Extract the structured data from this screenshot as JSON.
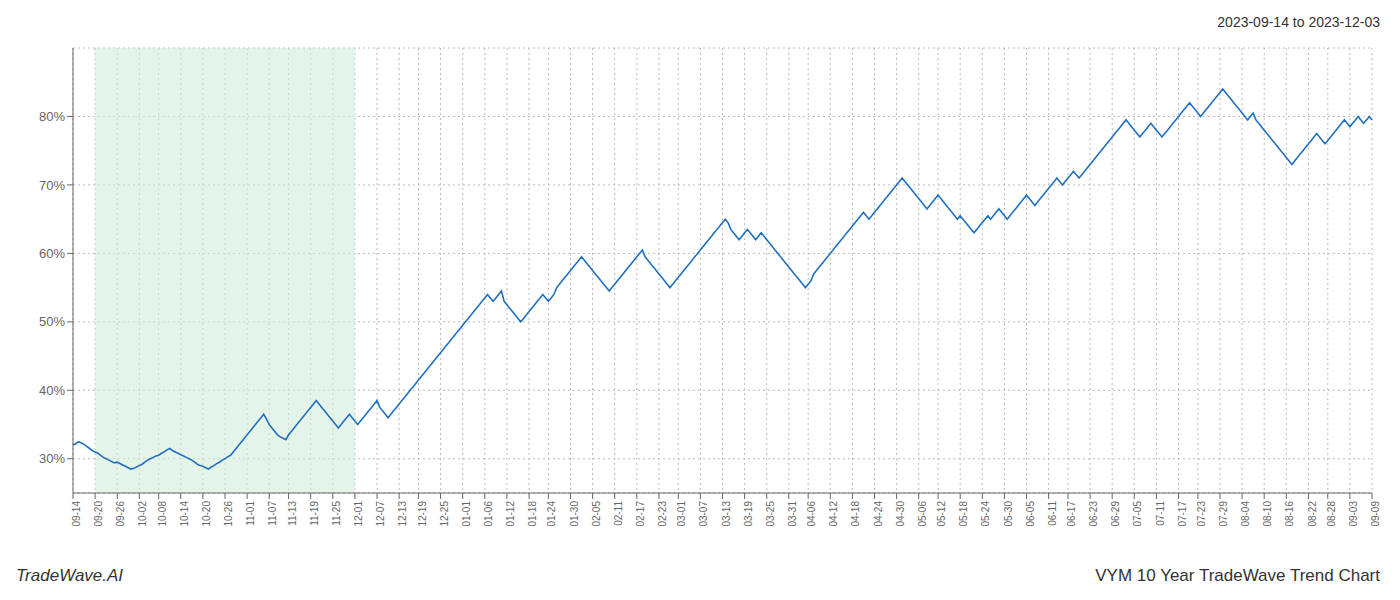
{
  "chart_data": {
    "type": "line",
    "title": "2023-09-14 to 2023-12-03",
    "annotations": [
      "TradeWave.AI",
      "VYM 10 Year TradeWave Trend Chart"
    ],
    "color": "#2070c0",
    "grid": true,
    "ylim": [
      25,
      90
    ],
    "yticks": [
      {
        "value": 30,
        "label": "30%"
      },
      {
        "value": 40,
        "label": "40%"
      },
      {
        "value": 50,
        "label": "50%"
      },
      {
        "value": 60,
        "label": "60%"
      },
      {
        "value": 70,
        "label": "70%"
      },
      {
        "value": 80,
        "label": "80%"
      }
    ],
    "highlight": {
      "start": "09-20",
      "end": "12-01",
      "color": "#d4edda"
    },
    "categories": [
      "09-14",
      null,
      null,
      null,
      null,
      null,
      null,
      null,
      "09-20",
      null,
      null,
      null,
      null,
      null,
      null,
      null,
      "09-26",
      null,
      null,
      null,
      null,
      null,
      null,
      null,
      "10-02",
      null,
      null,
      null,
      null,
      null,
      null,
      "10-08",
      null,
      null,
      null,
      null,
      null,
      null,
      null,
      "10-14",
      null,
      null,
      null,
      null,
      null,
      null,
      null,
      "10-20",
      null,
      null,
      null,
      null,
      null,
      null,
      null,
      "10-26",
      null,
      null,
      null,
      null,
      null,
      null,
      null,
      "11-01",
      null,
      null,
      null,
      null,
      null,
      null,
      null,
      "11-07",
      null,
      null,
      null,
      null,
      null,
      null,
      "11-13",
      null,
      null,
      null,
      null,
      null,
      null,
      null,
      "11-19",
      null,
      null,
      null,
      null,
      null,
      null,
      null,
      "11-25",
      null,
      null,
      null,
      null,
      null,
      null,
      null,
      "12-01",
      null,
      null,
      null,
      null,
      null,
      null,
      null,
      "12-07",
      null,
      null,
      null,
      null,
      null,
      null,
      null,
      "12-13",
      null,
      null,
      null,
      null,
      null,
      null,
      "12-19",
      null,
      null,
      null,
      null,
      null,
      null,
      null,
      "12-25",
      null,
      null,
      null,
      null,
      null,
      null,
      null,
      "01-01",
      null,
      null,
      null,
      null,
      null,
      null,
      null,
      "01-06",
      null,
      null,
      null,
      null,
      null,
      null,
      null,
      "01-12",
      null,
      null,
      null,
      null,
      null,
      null,
      null,
      "01-18",
      null,
      null,
      null,
      null,
      null,
      null,
      "01-24",
      null,
      null,
      null,
      null,
      null,
      null,
      null,
      "01-30",
      null,
      null,
      null,
      null,
      null,
      null,
      null,
      "02-05",
      null,
      null,
      null,
      null,
      null,
      null,
      null,
      "02-11",
      null,
      null,
      null,
      null,
      null,
      null,
      null,
      "02-17",
      null,
      null,
      null,
      null,
      null,
      null,
      null,
      "02-23",
      null,
      null,
      null,
      null,
      null,
      null,
      "03-01",
      null,
      null,
      null,
      null,
      null,
      null,
      null,
      "03-07",
      null,
      null,
      null,
      null,
      null,
      null,
      null,
      "03-13",
      null,
      null,
      null,
      null,
      null,
      null,
      null,
      "03-19",
      null,
      null,
      null,
      null,
      null,
      null,
      null,
      "03-25",
      null,
      null,
      null,
      null,
      null,
      null,
      null,
      "03-31",
      null,
      null,
      null,
      null,
      null,
      null,
      "04-06",
      null,
      null,
      null,
      null,
      null,
      null,
      null,
      "04-12",
      null,
      null,
      null,
      null,
      null,
      null,
      null,
      "04-18",
      null,
      null,
      null,
      null,
      null,
      null,
      null,
      "04-24",
      null,
      null,
      null,
      null,
      null,
      null,
      null,
      "04-30",
      null,
      null,
      null,
      null,
      null,
      null,
      null,
      "05-06",
      null,
      null,
      null,
      null,
      null,
      null,
      "05-12",
      null,
      null,
      null,
      null,
      null,
      null,
      null,
      "05-18",
      null,
      null,
      null,
      null,
      null,
      null,
      null,
      "05-24",
      null,
      null,
      null,
      null,
      null,
      null,
      null,
      "05-30",
      null,
      null,
      null,
      null,
      null,
      null,
      null,
      "06-05",
      null,
      null,
      null,
      null,
      null,
      null,
      null,
      "06-11",
      null,
      null,
      null,
      null,
      null,
      null,
      "06-17",
      null,
      null,
      null,
      null,
      null,
      null,
      null,
      "06-23",
      null,
      null,
      null,
      null,
      null,
      null,
      null,
      "06-29",
      null,
      null,
      null,
      null,
      null,
      null,
      null,
      "07-05",
      null,
      null,
      null,
      null,
      null,
      null,
      null,
      "07-11",
      null,
      null,
      null,
      null,
      null,
      null,
      null,
      "07-17",
      null,
      null,
      null,
      null,
      null,
      null,
      "07-23",
      null,
      null,
      null,
      null,
      null,
      null,
      null,
      "07-29",
      null,
      null,
      null,
      null,
      null,
      null,
      null,
      "08-04",
      null,
      null,
      null,
      null,
      null,
      null,
      null,
      "08-10",
      null,
      null,
      null,
      null,
      null,
      null,
      null,
      "08-16",
      null,
      null,
      null,
      null,
      null,
      null,
      null,
      "08-22",
      null,
      null,
      null,
      null,
      null,
      null,
      "08-28",
      null,
      null,
      null,
      null,
      null,
      null,
      null,
      "09-03",
      null,
      null,
      null,
      null,
      null,
      null,
      null,
      "09-09"
    ],
    "values": [
      32.0,
      32.2,
      32.5,
      32.3,
      32.1,
      31.8,
      31.5,
      31.2,
      31.0,
      30.8,
      30.5,
      30.2,
      30.0,
      29.8,
      29.6,
      29.4,
      29.5,
      29.3,
      29.1,
      28.9,
      28.7,
      28.5,
      28.6,
      28.8,
      29.0,
      29.2,
      29.5,
      29.8,
      30.0,
      30.2,
      30.4,
      30.5,
      30.8,
      31.0,
      31.3,
      31.5,
      31.2,
      31.0,
      30.8,
      30.6,
      30.4,
      30.2,
      30.0,
      29.8,
      29.5,
      29.2,
      29.0,
      28.9,
      28.7,
      28.5,
      28.8,
      29.0,
      29.3,
      29.5,
      29.8,
      30.0,
      30.3,
      30.5,
      31.0,
      31.5,
      32.0,
      32.5,
      33.0,
      33.5,
      34.0,
      34.5,
      35.0,
      35.5,
      36.0,
      36.5,
      35.8,
      35.0,
      34.5,
      34.0,
      33.5,
      33.2,
      33.0,
      32.8,
      33.5,
      34.0,
      34.5,
      35.0,
      35.5,
      36.0,
      36.5,
      37.0,
      37.5,
      38.0,
      38.5,
      38.0,
      37.5,
      37.0,
      36.5,
      36.0,
      35.5,
      35.0,
      34.5,
      35.0,
      35.5,
      36.0,
      36.5,
      36.0,
      35.5,
      35.0,
      35.5,
      36.0,
      36.5,
      37.0,
      37.5,
      38.0,
      38.5,
      37.5,
      37.0,
      36.5,
      36.0,
      36.5,
      37.0,
      37.5,
      38.0,
      38.5,
      39.0,
      39.5,
      40.0,
      40.5,
      41.0,
      41.5,
      42.0,
      42.5,
      43.0,
      43.5,
      44.0,
      44.5,
      45.0,
      45.5,
      46.0,
      46.5,
      47.0,
      47.5,
      48.0,
      48.5,
      49.0,
      49.5,
      50.0,
      50.5,
      51.0,
      51.5,
      52.0,
      52.5,
      53.0,
      53.5,
      54.0,
      53.5,
      53.0,
      53.5,
      54.0,
      54.5,
      53.0,
      52.5,
      52.0,
      51.5,
      51.0,
      50.5,
      50.0,
      50.5,
      51.0,
      51.5,
      52.0,
      52.5,
      53.0,
      53.5,
      54.0,
      53.5,
      53.0,
      53.5,
      54.0,
      55.0,
      55.5,
      56.0,
      56.5,
      57.0,
      57.5,
      58.0,
      58.5,
      59.0,
      59.5,
      59.0,
      58.5,
      58.0,
      57.5,
      57.0,
      56.5,
      56.0,
      55.5,
      55.0,
      54.5,
      55.0,
      55.5,
      56.0,
      56.5,
      57.0,
      57.5,
      58.0,
      58.5,
      59.0,
      59.5,
      60.0,
      60.5,
      59.5,
      59.0,
      58.5,
      58.0,
      57.5,
      57.0,
      56.5,
      56.0,
      55.5,
      55.0,
      55.5,
      56.0,
      56.5,
      57.0,
      57.5,
      58.0,
      58.5,
      59.0,
      59.5,
      60.0,
      60.5,
      61.0,
      61.5,
      62.0,
      62.5,
      63.0,
      63.5,
      64.0,
      64.5,
      65.0,
      64.5,
      63.5,
      63.0,
      62.5,
      62.0,
      62.5,
      63.0,
      63.5,
      63.0,
      62.5,
      62.0,
      62.5,
      63.0,
      62.5,
      62.0,
      61.5,
      61.0,
      60.5,
      60.0,
      59.5,
      59.0,
      58.5,
      58.0,
      57.5,
      57.0,
      56.5,
      56.0,
      55.5,
      55.0,
      55.5,
      56.0,
      57.0,
      57.5,
      58.0,
      58.5,
      59.0,
      59.5,
      60.0,
      60.5,
      61.0,
      61.5,
      62.0,
      62.5,
      63.0,
      63.5,
      64.0,
      64.5,
      65.0,
      65.5,
      66.0,
      65.5,
      65.0,
      65.5,
      66.0,
      66.5,
      67.0,
      67.5,
      68.0,
      68.5,
      69.0,
      69.5,
      70.0,
      70.5,
      71.0,
      70.5,
      70.0,
      69.5,
      69.0,
      68.5,
      68.0,
      67.5,
      67.0,
      66.5,
      67.0,
      67.5,
      68.0,
      68.5,
      68.0,
      67.5,
      67.0,
      66.5,
      66.0,
      65.5,
      65.0,
      65.5,
      65.0,
      64.5,
      64.0,
      63.5,
      63.0,
      63.5,
      64.0,
      64.5,
      65.0,
      65.5,
      65.0,
      65.5,
      66.0,
      66.5,
      66.0,
      65.5,
      65.0,
      65.5,
      66.0,
      66.5,
      67.0,
      67.5,
      68.0,
      68.5,
      68.0,
      67.5,
      67.0,
      67.5,
      68.0,
      68.5,
      69.0,
      69.5,
      70.0,
      70.5,
      71.0,
      70.5,
      70.0,
      70.5,
      71.0,
      71.5,
      72.0,
      71.5,
      71.0,
      71.5,
      72.0,
      72.5,
      73.0,
      73.5,
      74.0,
      74.5,
      75.0,
      75.5,
      76.0,
      76.5,
      77.0,
      77.5,
      78.0,
      78.5,
      79.0,
      79.5,
      79.0,
      78.5,
      78.0,
      77.5,
      77.0,
      77.5,
      78.0,
      78.5,
      79.0,
      78.5,
      78.0,
      77.5,
      77.0,
      77.5,
      78.0,
      78.5,
      79.0,
      79.5,
      80.0,
      80.5,
      81.0,
      81.5,
      82.0,
      81.5,
      81.0,
      80.5,
      80.0,
      80.5,
      81.0,
      81.5,
      82.0,
      82.5,
      83.0,
      83.5,
      84.0,
      83.5,
      83.0,
      82.5,
      82.0,
      81.5,
      81.0,
      80.5,
      80.0,
      79.5,
      80.0,
      80.5,
      79.5,
      79.0,
      78.5,
      78.0,
      77.5,
      77.0,
      76.5,
      76.0,
      75.5,
      75.0,
      74.5,
      74.0,
      73.5,
      73.0,
      73.5,
      74.0,
      74.5,
      75.0,
      75.5,
      76.0,
      76.5,
      77.0,
      77.5,
      77.0,
      76.5,
      76.0,
      76.5,
      77.0,
      77.5,
      78.0,
      78.5,
      79.0,
      79.5,
      79.0,
      78.5,
      79.0,
      79.5,
      80.0,
      79.5,
      79.0,
      79.5,
      80.0,
      79.5
    ]
  }
}
